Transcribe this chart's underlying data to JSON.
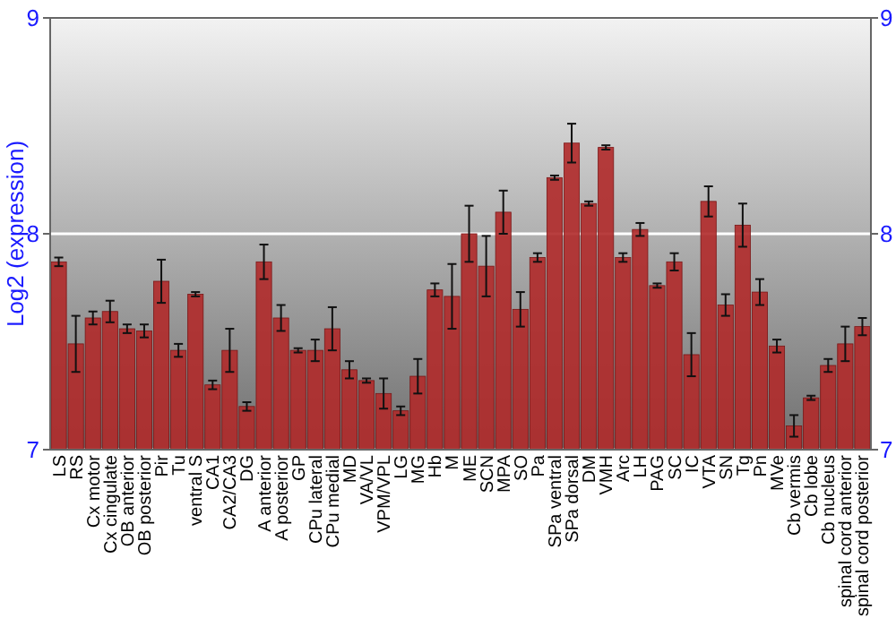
{
  "chart_data": {
    "type": "bar",
    "ylabel": "Log2 (expression)",
    "categories": [
      "LS",
      "RS",
      "Cx motor",
      "Cx cingulate",
      "OB anterior",
      "OB posterior",
      "Pir",
      "Tu",
      "ventral S",
      "CA1",
      "CA2/CA3",
      "DG",
      "A anterior",
      "A posterior",
      "GP",
      "CPu lateral",
      "CPu medial",
      "MD",
      "VA/VL",
      "VPM/VPL",
      "LG",
      "MG",
      "Hb",
      "M",
      "ME",
      "SCN",
      "MPA",
      "SO",
      "Pa",
      "SPa ventral",
      "SPa dorsal",
      "DM",
      "VMH",
      "Arc",
      "LH",
      "PAG",
      "SC",
      "IC",
      "VTA",
      "SN",
      "Tg",
      "Pn",
      "MVe",
      "Cb vermis",
      "Cb lobe",
      "Cb nucleus",
      "spinal cord anterior",
      "spinal cord posterior"
    ],
    "values": [
      7.87,
      7.49,
      7.61,
      7.64,
      7.56,
      7.55,
      7.78,
      7.46,
      7.72,
      7.3,
      7.46,
      7.2,
      7.87,
      7.61,
      7.46,
      7.46,
      7.56,
      7.37,
      7.32,
      7.26,
      7.18,
      7.34,
      7.74,
      7.71,
      8.0,
      7.85,
      8.1,
      7.65,
      7.89,
      8.26,
      8.42,
      8.14,
      8.4,
      7.89,
      8.02,
      7.76,
      7.87,
      7.44,
      8.15,
      7.67,
      8.04,
      7.73,
      7.48,
      7.11,
      7.24,
      7.39,
      7.49,
      7.57
    ],
    "errors": [
      0.02,
      0.13,
      0.03,
      0.05,
      0.02,
      0.03,
      0.1,
      0.03,
      0.01,
      0.02,
      0.1,
      0.02,
      0.08,
      0.06,
      0.01,
      0.05,
      0.1,
      0.04,
      0.01,
      0.07,
      0.02,
      0.08,
      0.03,
      0.15,
      0.13,
      0.14,
      0.1,
      0.08,
      0.02,
      0.01,
      0.09,
      0.01,
      0.01,
      0.02,
      0.03,
      0.01,
      0.04,
      0.1,
      0.07,
      0.05,
      0.1,
      0.06,
      0.03,
      0.05,
      0.01,
      0.03,
      0.08,
      0.04
    ],
    "color": "#b02a2a",
    "ylim": [
      7,
      9
    ],
    "yticks": [
      7,
      8,
      9
    ],
    "y2lim": [
      7,
      9
    ],
    "y2ticks": [
      7,
      8,
      9
    ],
    "grid": "y"
  }
}
